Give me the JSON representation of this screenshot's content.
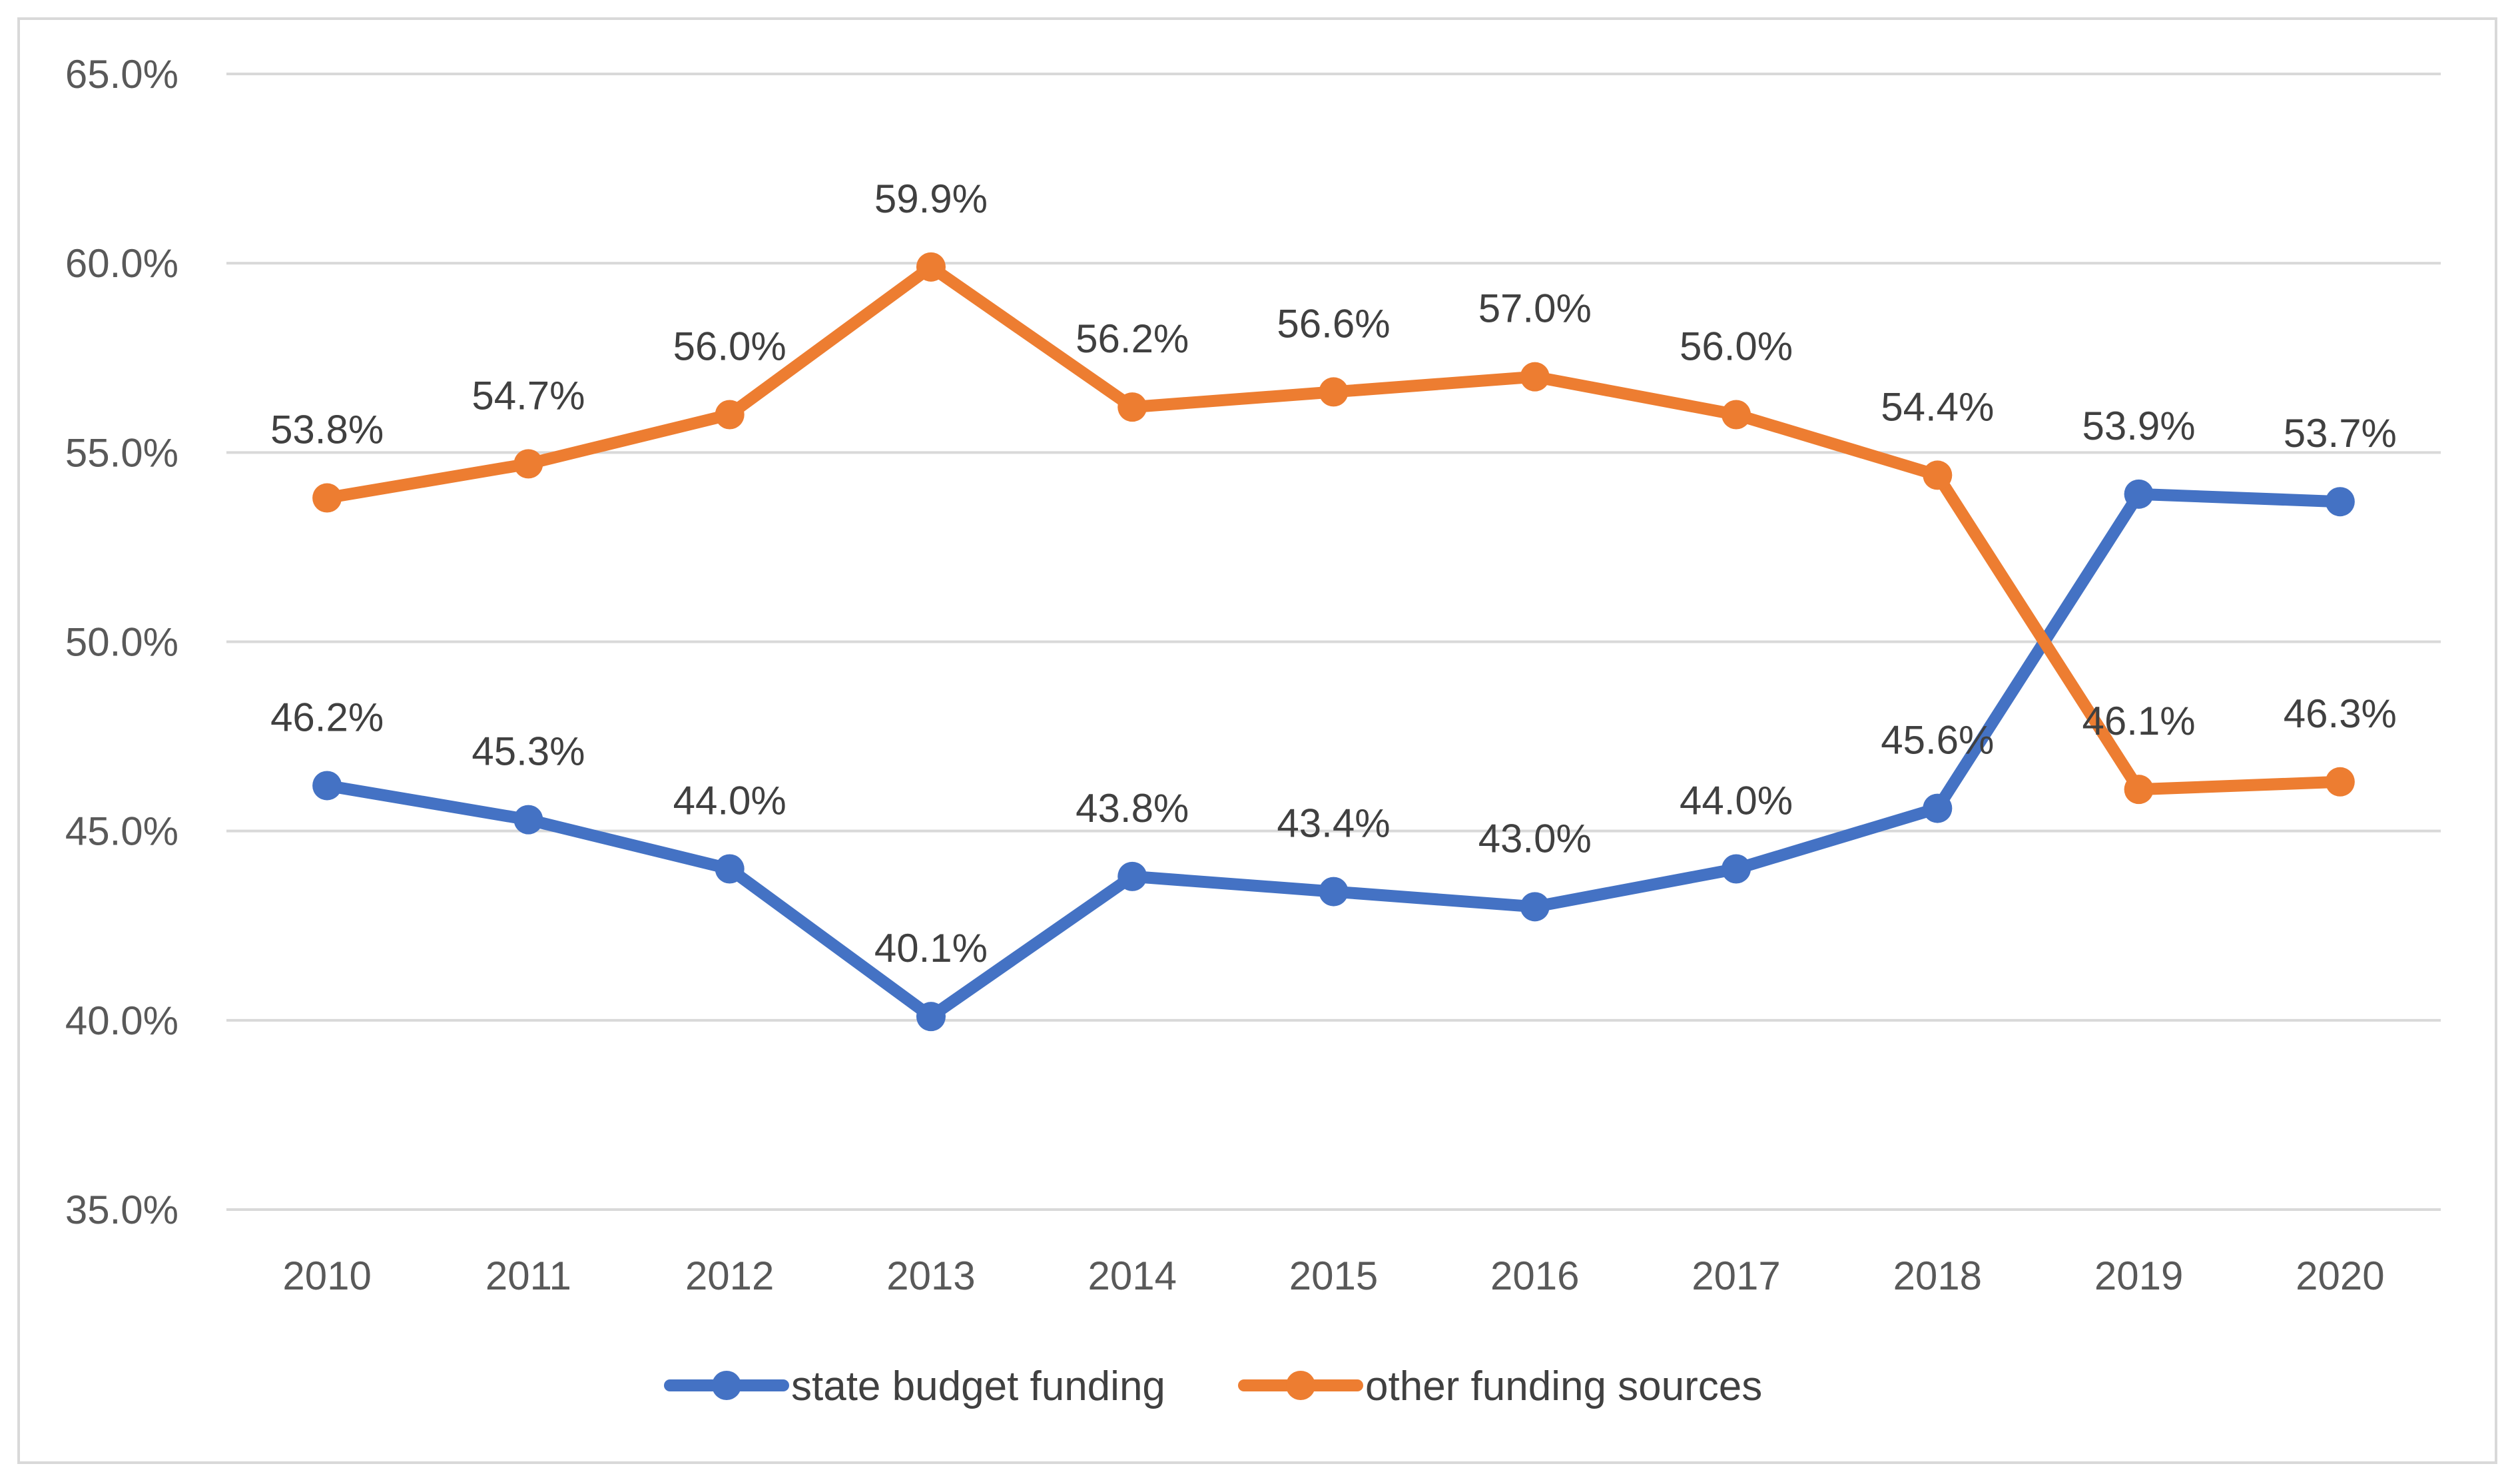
{
  "chart_data": {
    "type": "line",
    "title": "",
    "xlabel": "",
    "ylabel": "",
    "categories": [
      "2010",
      "2011",
      "2012",
      "2013",
      "2014",
      "2015",
      "2016",
      "2017",
      "2018",
      "2019",
      "2020"
    ],
    "series": [
      {
        "name": "state budget funding",
        "color": "#4472c4",
        "values": [
          46.2,
          45.3,
          44.0,
          40.1,
          43.8,
          43.4,
          43.0,
          44.0,
          45.6,
          53.9,
          53.7
        ],
        "labels": [
          "46.2%",
          "45.3%",
          "44.0%",
          "40.1%",
          "43.8%",
          "43.4%",
          "43.0%",
          "44.0%",
          "45.6%",
          "53.9%",
          "53.7%"
        ]
      },
      {
        "name": "other funding sources",
        "color": "#ed7d31",
        "values": [
          53.8,
          54.7,
          56.0,
          59.9,
          56.2,
          56.6,
          57.0,
          56.0,
          54.4,
          46.1,
          46.3
        ],
        "labels": [
          "53.8%",
          "54.7%",
          "56.0%",
          "59.9%",
          "56.2%",
          "56.6%",
          "57.0%",
          "56.0%",
          "54.4%",
          "46.1%",
          "46.3%"
        ]
      }
    ],
    "ylim": [
      35.0,
      65.0
    ],
    "yticks": [
      35.0,
      40.0,
      45.0,
      50.0,
      55.0,
      60.0,
      65.0
    ],
    "ytick_labels": [
      "35.0%",
      "40.0%",
      "45.0%",
      "50.0%",
      "55.0%",
      "60.0%",
      "65.0%"
    ],
    "grid": true,
    "legend_position": "bottom",
    "data_labels": "above"
  }
}
